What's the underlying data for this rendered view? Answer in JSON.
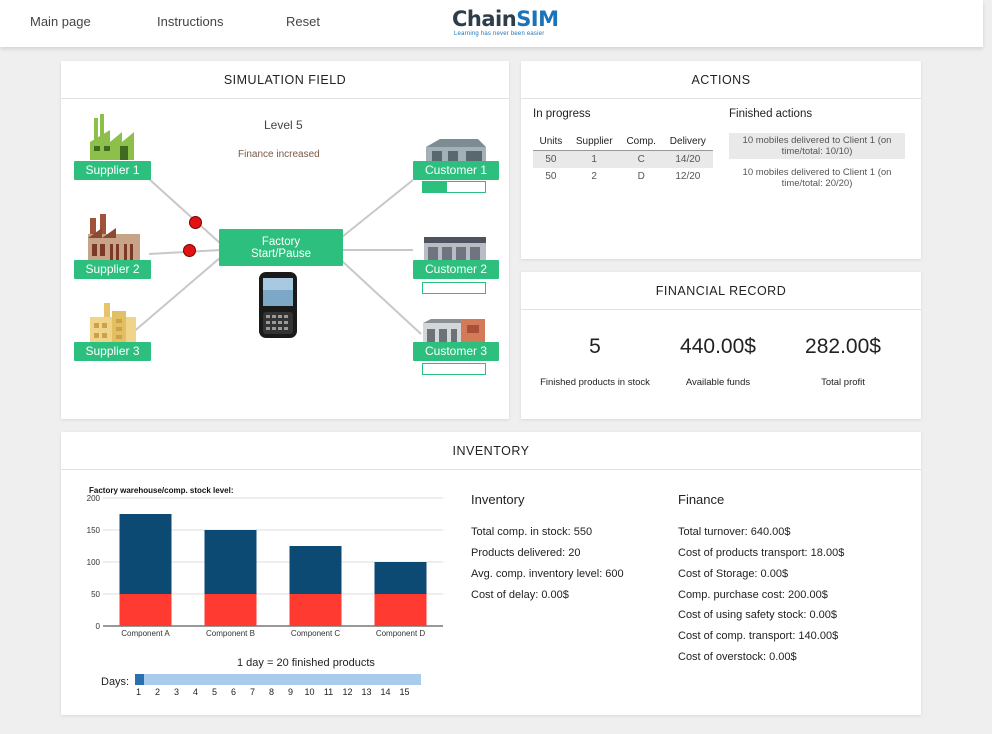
{
  "nav": {
    "main_page": "Main page",
    "instructions": "Instructions",
    "reset": "Reset"
  },
  "logo": {
    "word_part1": "Chain",
    "word_part2": "SIM",
    "tagline": "Learning has never been easier"
  },
  "simulation": {
    "title": "SIMULATION FIELD",
    "level": "Level 5",
    "message": "Finance increased",
    "factory_label_line1": "Factory",
    "factory_label_line2": "Start/Pause",
    "suppliers": [
      {
        "label": "Supplier 1"
      },
      {
        "label": "Supplier 2"
      },
      {
        "label": "Supplier 3"
      }
    ],
    "customers": [
      {
        "label": "Customer 1",
        "progress": 0.38
      },
      {
        "label": "Customer 2",
        "progress": 0
      },
      {
        "label": "Customer 3",
        "progress": 0
      }
    ],
    "colors": {
      "accent": "#2dbf7e",
      "shipment_dot": "#e01212"
    }
  },
  "actions": {
    "title": "ACTIONS",
    "in_progress_label": "In progress",
    "finished_label": "Finished actions",
    "columns": [
      "Units",
      "Supplier",
      "Comp.",
      "Delivery"
    ],
    "rows": [
      [
        "50",
        "1",
        "C",
        "14/20"
      ],
      [
        "50",
        "2",
        "D",
        "12/20"
      ]
    ],
    "finished": [
      "10 mobiles delivered to Client 1 (on time/total: 10/10)",
      "10 mobiles delivered to Client 1 (on time/total: 20/20)"
    ]
  },
  "financial_record": {
    "title": "FINANCIAL RECORD",
    "items": [
      {
        "value": "5",
        "label": "Finished products in stock"
      },
      {
        "value": "440.00$",
        "label": "Available funds"
      },
      {
        "value": "282.00$",
        "label": "Total profit"
      }
    ]
  },
  "inventory": {
    "title": "INVENTORY",
    "inventory_head": "Inventory",
    "inventory_lines": [
      "Total comp. in stock: 550",
      "Products delivered: 20",
      "Avg. comp. inventory level: 600",
      "Cost of delay: 0.00$"
    ],
    "finance_head": "Finance",
    "finance_lines": [
      "Total turnover: 640.00$",
      "Cost of products transport: 18.00$",
      "Cost of Storage: 0.00$",
      "Comp. purchase cost: 200.00$",
      "Cost of using safety stock: 0.00$",
      "Cost of comp. transport: 140.00$",
      "Cost of overstock: 0.00$"
    ],
    "day_note": "1 day = 20 finished products",
    "days_label": "Days:",
    "days": [
      "1",
      "2",
      "3",
      "4",
      "5",
      "6",
      "7",
      "8",
      "9",
      "10",
      "11",
      "12",
      "13",
      "14",
      "15"
    ],
    "current_day": 1,
    "colors": {
      "bar_top": "#0d4a73",
      "bar_bottom": "#ff3a30",
      "days_track": "#a9cbec",
      "days_fill": "#2a6fb0"
    }
  },
  "chart_data": {
    "type": "bar",
    "title": "Factory warehouse/comp. stock level:",
    "categories": [
      "Component A",
      "Component B",
      "Component C",
      "Component D"
    ],
    "series": [
      {
        "values": [
          50,
          50,
          50,
          50
        ],
        "color": "#ff3a30"
      },
      {
        "values": [
          125,
          100,
          75,
          50
        ],
        "color": "#0d4a73"
      }
    ],
    "stacked": true,
    "ylim": [
      0,
      200
    ],
    "yticks": [
      0,
      50,
      100,
      150,
      200
    ],
    "grid": true
  }
}
